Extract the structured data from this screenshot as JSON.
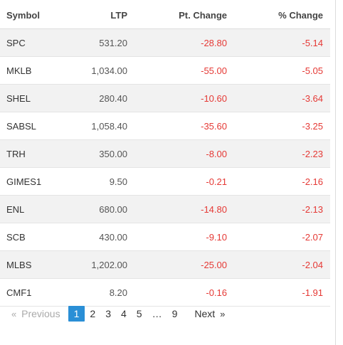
{
  "table": {
    "headers": {
      "symbol": "Symbol",
      "ltp": "LTP",
      "pt_change": "Pt. Change",
      "pct_change": "% Change"
    },
    "rows": [
      {
        "symbol": "SPC",
        "ltp": "531.20",
        "pt_change": "-28.80",
        "pct_change": "-5.14"
      },
      {
        "symbol": "MKLB",
        "ltp": "1,034.00",
        "pt_change": "-55.00",
        "pct_change": "-5.05"
      },
      {
        "symbol": "SHEL",
        "ltp": "280.40",
        "pt_change": "-10.60",
        "pct_change": "-3.64"
      },
      {
        "symbol": "SABSL",
        "ltp": "1,058.40",
        "pt_change": "-35.60",
        "pct_change": "-3.25"
      },
      {
        "symbol": "TRH",
        "ltp": "350.00",
        "pt_change": "-8.00",
        "pct_change": "-2.23"
      },
      {
        "symbol": "GIMES1",
        "ltp": "9.50",
        "pt_change": "-0.21",
        "pct_change": "-2.16"
      },
      {
        "symbol": "ENL",
        "ltp": "680.00",
        "pt_change": "-14.80",
        "pct_change": "-2.13"
      },
      {
        "symbol": "SCB",
        "ltp": "430.00",
        "pt_change": "-9.10",
        "pct_change": "-2.07"
      },
      {
        "symbol": "MLBS",
        "ltp": "1,202.00",
        "pt_change": "-25.00",
        "pct_change": "-2.04"
      },
      {
        "symbol": "CMF1",
        "ltp": "8.20",
        "pt_change": "-0.16",
        "pct_change": "-1.91"
      }
    ]
  },
  "pagination": {
    "prev_arrow": "«",
    "prev_label": "Previous",
    "pages": [
      "1",
      "2",
      "3",
      "4",
      "5"
    ],
    "ellipsis": "…",
    "last_page": "9",
    "next_label": "Next",
    "next_arrow": "»",
    "current_page": "1"
  },
  "colors": {
    "negative": "#e53935",
    "active_page": "#2a8fd6",
    "row_stripe": "#f2f2f2"
  }
}
